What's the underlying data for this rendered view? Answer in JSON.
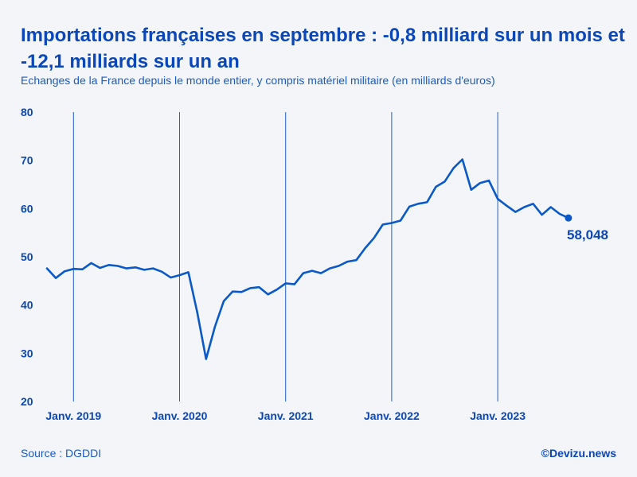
{
  "chart_data": {
    "type": "line",
    "title": "Importations françaises en septembre : -0,8 milliard sur un mois et -12,1 milliards sur un an",
    "subtitle": "Echanges de la France depuis le monde entier, y compris matériel militaire (en milliards d'euros)",
    "ylim": [
      20,
      80
    ],
    "yticks": [
      "80",
      "70",
      "60",
      "50",
      "40",
      "30",
      "20"
    ],
    "xticks": [
      "Janv. 2019",
      "Janv. 2020",
      "Janv. 2021",
      "Janv. 2022",
      "Janv. 2023"
    ],
    "grid": "vertical lines at each January",
    "series": [
      {
        "name": "Importations",
        "start": "Oct. 2018",
        "values": [
          47.6,
          45.6,
          47.0,
          47.5,
          47.4,
          48.7,
          47.7,
          48.3,
          48.1,
          47.6,
          47.8,
          47.3,
          47.6,
          46.9,
          45.7,
          46.2,
          46.8,
          38.5,
          28.8,
          35.5,
          40.8,
          42.8,
          42.7,
          43.5,
          43.7,
          42.2,
          43.2,
          44.5,
          44.3,
          46.6,
          47.1,
          46.6,
          47.6,
          48.1,
          49.0,
          49.3,
          51.8,
          53.9,
          56.7,
          57.0,
          57.5,
          60.4,
          61.0,
          61.3,
          64.5,
          65.6,
          68.4,
          70.2,
          63.9,
          65.3,
          65.8,
          62.0,
          60.6,
          59.3,
          60.3,
          61.0,
          58.7,
          60.3,
          58.9,
          58.048
        ]
      }
    ],
    "last_value_label": "58,048",
    "source": "Source : DGDDI",
    "credit": "©Devizu.news",
    "colors": {
      "line": "#0b58c8",
      "text": "#0b47b8",
      "grid": "#1f5fc6",
      "background": "#f3f5f9"
    }
  }
}
